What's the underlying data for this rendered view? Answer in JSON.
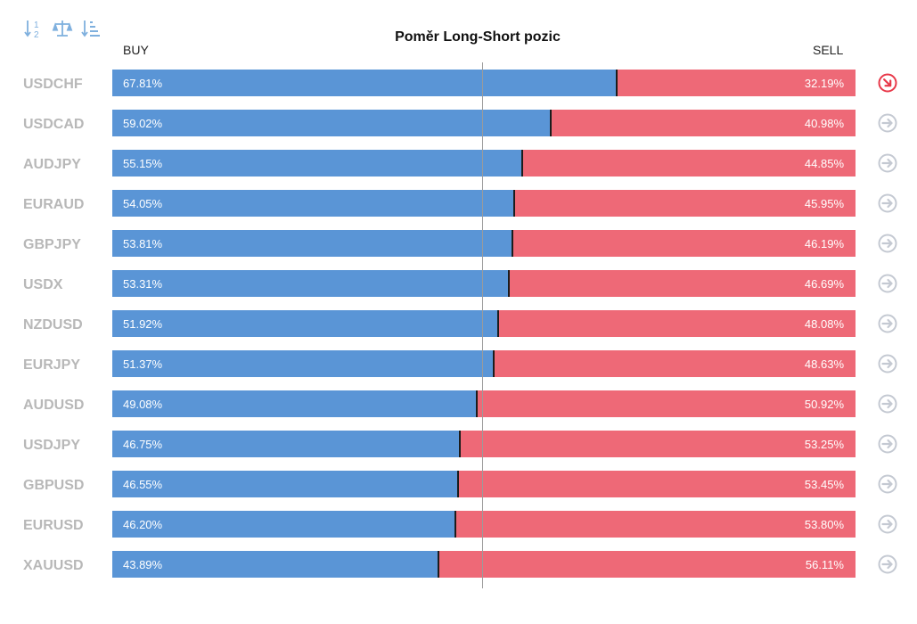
{
  "toolbar": {
    "icons": [
      "sort-alpha-icon",
      "balance-scale-icon",
      "sort-descending-icon"
    ],
    "icon_color": "#7fb0de"
  },
  "header": {
    "title": "Poměr Long-Short pozic",
    "buy_label": "BUY",
    "sell_label": "SELL"
  },
  "colors": {
    "buy": "#5a95d6",
    "sell": "#ee6977",
    "arrow_active": "#e8394a",
    "arrow_inactive": "#c4c9d2",
    "symbol": "#b8b8b8"
  },
  "chart_data": {
    "type": "bar",
    "stacked": true,
    "orientation": "horizontal",
    "title": "Poměr Long-Short pozic",
    "categories": [
      "USDCHF",
      "USDCAD",
      "AUDJPY",
      "EURAUD",
      "GBPJPY",
      "USDX",
      "NZDUSD",
      "EURJPY",
      "AUDUSD",
      "USDJPY",
      "GBPUSD",
      "EURUSD",
      "XAUUSD"
    ],
    "series": [
      {
        "name": "BUY",
        "values": [
          67.81,
          59.02,
          55.15,
          54.05,
          53.81,
          53.31,
          51.92,
          51.37,
          49.08,
          46.75,
          46.55,
          46.2,
          43.89
        ],
        "labels": [
          "67.81%",
          "59.02%",
          "55.15%",
          "54.05%",
          "53.81%",
          "53.31%",
          "51.92%",
          "51.37%",
          "49.08%",
          "46.75%",
          "46.55%",
          "46.20%",
          "43.89%"
        ]
      },
      {
        "name": "SELL",
        "values": [
          32.19,
          40.98,
          44.85,
          45.95,
          46.19,
          46.69,
          48.08,
          48.63,
          50.92,
          53.25,
          53.45,
          53.8,
          56.11
        ],
        "labels": [
          "32.19%",
          "40.98%",
          "44.85%",
          "45.95%",
          "46.19%",
          "46.69%",
          "48.08%",
          "48.63%",
          "50.92%",
          "53.25%",
          "53.45%",
          "53.80%",
          "56.11%"
        ]
      }
    ],
    "xlim": [
      0,
      100
    ],
    "reference_line": 50,
    "row_arrows": [
      "active",
      "inactive",
      "inactive",
      "inactive",
      "inactive",
      "inactive",
      "inactive",
      "inactive",
      "inactive",
      "inactive",
      "inactive",
      "inactive",
      "inactive"
    ]
  }
}
